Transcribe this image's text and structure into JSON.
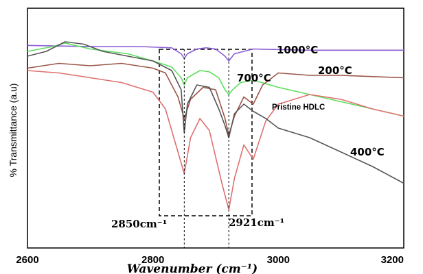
{
  "chart_data": {
    "type": "line",
    "title": "",
    "xlabel": "Wavenumber (cm⁻¹)",
    "ylabel": "% Transmittance (a.u)",
    "xlim": [
      2600,
      3200
    ],
    "ylim": [
      0,
      100
    ],
    "xticks": [
      "2600",
      "2800",
      "3000",
      "3200"
    ],
    "grid": false,
    "legend": "none",
    "series": [
      {
        "name": "1000°C",
        "color": "#8a5cd6",
        "x": [
          2600,
          2700,
          2780,
          2830,
          2845,
          2850,
          2855,
          2870,
          2885,
          2900,
          2915,
          2921,
          2930,
          2960,
          3050,
          3200
        ],
        "y": [
          84.5,
          84,
          84,
          83.5,
          81,
          79,
          81,
          83,
          83.5,
          83,
          80,
          78,
          81,
          83,
          82.5,
          82.5
        ]
      },
      {
        "name": "700°C",
        "color": "#5ce05c",
        "x": [
          2600,
          2640,
          2660,
          2700,
          2760,
          2800,
          2830,
          2845,
          2850,
          2855,
          2875,
          2890,
          2905,
          2915,
          2921,
          2927,
          2940,
          2960,
          3000,
          3050,
          3100,
          3150,
          3200
        ],
        "y": [
          82,
          84,
          85.5,
          83,
          81,
          78,
          75.5,
          71,
          68,
          71,
          74,
          73.5,
          71,
          66,
          64,
          66,
          69,
          70,
          67,
          64,
          61,
          58,
          55
        ]
      },
      {
        "name": "200°C",
        "color": "#9c5448",
        "x": [
          2600,
          2650,
          2700,
          2750,
          2800,
          2820,
          2840,
          2850,
          2860,
          2880,
          2900,
          2915,
          2921,
          2930,
          2945,
          2960,
          2975,
          3000,
          3050,
          3100,
          3150,
          3200
        ],
        "y": [
          75,
          77,
          76,
          77,
          75,
          73,
          63,
          54,
          62,
          67,
          66,
          54,
          47,
          55,
          63,
          60,
          68,
          73,
          72,
          72,
          71.5,
          71
        ]
      },
      {
        "name": "Pristine HDLC",
        "color": "#e06f6f",
        "x": [
          2600,
          2650,
          2700,
          2750,
          2800,
          2820,
          2840,
          2850,
          2860,
          2875,
          2890,
          2910,
          2921,
          2930,
          2945,
          2960,
          2980,
          3000,
          3050,
          3100,
          3150,
          3200
        ],
        "y": [
          74,
          73,
          71,
          69,
          65,
          58,
          40,
          31,
          46,
          54,
          49,
          27,
          16,
          29,
          43,
          37,
          53,
          60,
          64,
          62,
          58,
          55
        ]
      },
      {
        "name": "400°C",
        "color": "#555555",
        "x": [
          2600,
          2630,
          2660,
          2690,
          2720,
          2760,
          2800,
          2830,
          2845,
          2850,
          2855,
          2870,
          2890,
          2905,
          2915,
          2921,
          2930,
          2945,
          2960,
          2980,
          3000,
          3050,
          3100,
          3150,
          3200
        ],
        "y": [
          80,
          82,
          86,
          85,
          82,
          80,
          78,
          74,
          66,
          48,
          60,
          68,
          67,
          58,
          51,
          46,
          56,
          60,
          57,
          54,
          50,
          46,
          40,
          34,
          27
        ]
      }
    ],
    "annotations": {
      "label_1000": "1000°C",
      "label_700": "700°C",
      "label_200": "200°C",
      "label_pristine": "Pristine HDLC",
      "label_400": "400°C",
      "peak_2850": "2850cm⁻¹",
      "peak_2921": "2921cm⁻¹"
    }
  }
}
